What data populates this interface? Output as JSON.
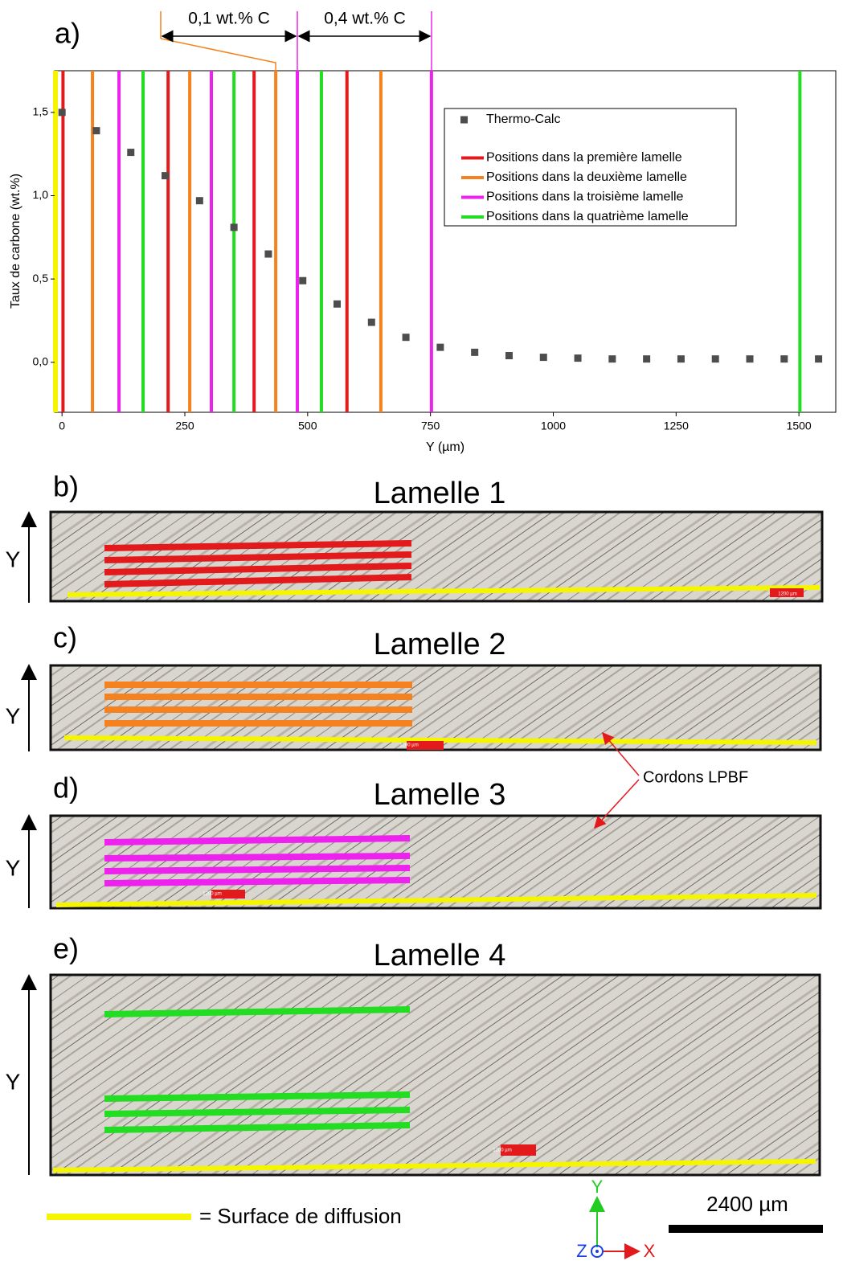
{
  "chart_data": {
    "type": "scatter",
    "panel_label": "a)",
    "x_label": "Y (µm)",
    "y_label": "Taux de carbone (wt.%)",
    "xlim": [
      -15,
      1575
    ],
    "ylim": [
      -0.3,
      1.75
    ],
    "xticks": [
      0,
      250,
      500,
      750,
      1000,
      1250,
      1500
    ],
    "yticks": [
      {
        "value": 0,
        "label": "0,0"
      },
      {
        "value": 0.5,
        "label": "0,5"
      },
      {
        "value": 1,
        "label": "1,0"
      },
      {
        "value": 1.5,
        "label": "1,5"
      }
    ],
    "annotations": [
      "0,1 wt.% C",
      "0,4 wt.% C"
    ],
    "series": [
      {
        "name": "Thermo-Calc",
        "color": "#4d4d4d",
        "x": [
          0,
          70,
          140,
          210,
          280,
          350,
          420,
          490,
          560,
          630,
          700,
          770,
          840,
          910,
          980,
          1050,
          1120,
          1190,
          1260,
          1330,
          1400,
          1470,
          1540
        ],
        "values": [
          1.5,
          1.39,
          1.26,
          1.12,
          0.97,
          0.81,
          0.65,
          0.49,
          0.35,
          0.24,
          0.15,
          0.09,
          0.06,
          0.04,
          0.03,
          0.025,
          0.02,
          0.02,
          0.02,
          0.02,
          0.02,
          0.02,
          0.02
        ]
      },
      {
        "name": "Positions dans la première lamelle",
        "color": "#e31a1c",
        "vlines": [
          2,
          216,
          391,
          580
        ]
      },
      {
        "name": "Positions dans la deuxième lamelle",
        "color": "#f5821f",
        "vlines": [
          62,
          260,
          435,
          649
        ]
      },
      {
        "name": "Positions dans la troisième lamelle",
        "color": "#ee22ee",
        "vlines": [
          116,
          304,
          479,
          752
        ]
      },
      {
        "name": "Positions dans la quatrième lamelle",
        "color": "#22dd22",
        "vlines": [
          165,
          350,
          528,
          1502
        ]
      }
    ]
  },
  "panels": [
    {
      "label": "b)",
      "title": "Lamelle 1",
      "axis": "Y",
      "scale": "1200 µm"
    },
    {
      "label": "c)",
      "title": "Lamelle 2",
      "axis": "Y",
      "scale": "1200 µm"
    },
    {
      "label": "d)",
      "title": "Lamelle 3",
      "axis": "Y",
      "scale": "1200 µm"
    },
    {
      "label": "e)",
      "title": "Lamelle 4",
      "axis": "Y",
      "scale": "1200 µm"
    }
  ],
  "callout": "Cordons LPBF",
  "surface_legend": "= Surface de diffusion",
  "scale_bar": "2400 µm",
  "axes_triad": {
    "y": "Y",
    "z": "Z",
    "x": "X"
  }
}
